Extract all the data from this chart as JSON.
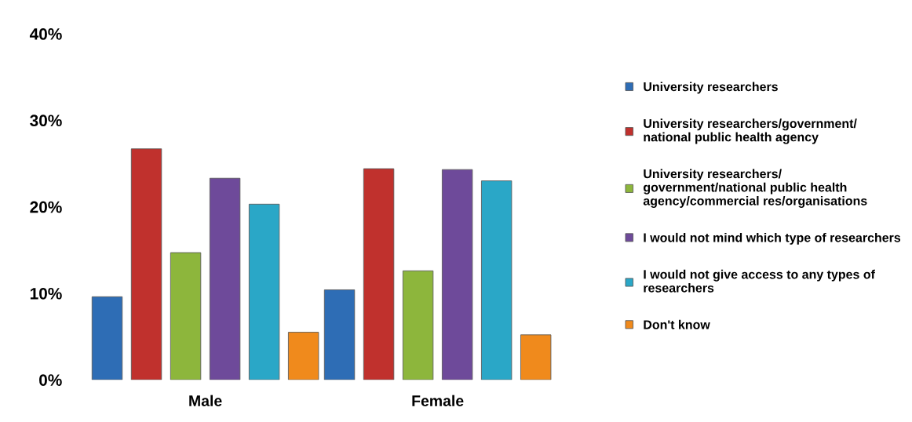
{
  "chart_data": {
    "type": "bar",
    "categories": [
      "Male",
      "Female"
    ],
    "series": [
      {
        "name": "University researchers",
        "color": "#2e6db5",
        "values": [
          9.6,
          10.4
        ]
      },
      {
        "name": "University researchers/government/ national public health agency",
        "color": "#c0312d",
        "values": [
          26.7,
          24.4
        ]
      },
      {
        "name": "University researchers/ government/national public health agency/commercial res/organisations",
        "color": "#8db63c",
        "values": [
          14.7,
          12.6
        ]
      },
      {
        "name": "I would not mind which type of researchers",
        "color": "#6e4a9a",
        "values": [
          23.3,
          24.3
        ]
      },
      {
        "name": "I would not give access to any types of researchers",
        "color": "#2aa7c7",
        "values": [
          20.3,
          23.0
        ]
      },
      {
        "name": "Don't know",
        "color": "#f08a1c",
        "values": [
          5.5,
          5.2
        ]
      }
    ],
    "ylim": [
      0,
      40
    ],
    "yticks": [
      {
        "value": 0,
        "label": "0%"
      },
      {
        "value": 10,
        "label": "10%"
      },
      {
        "value": 20,
        "label": "20%"
      },
      {
        "value": 30,
        "label": "30%"
      },
      {
        "value": 40,
        "label": "40%"
      }
    ],
    "grid": false,
    "legend": "right"
  }
}
